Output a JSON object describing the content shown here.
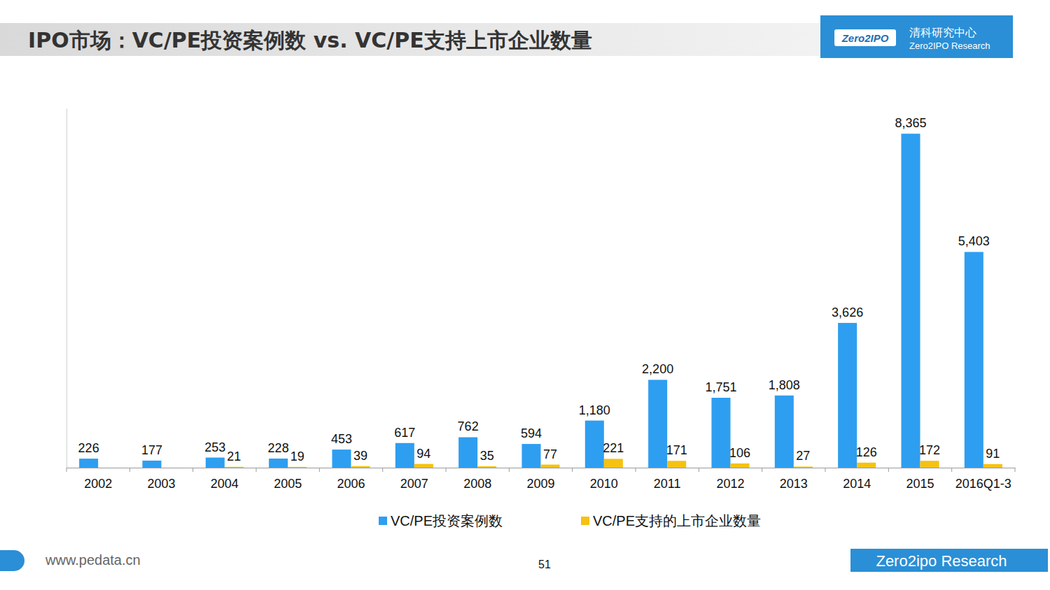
{
  "header": {
    "logo": {
      "mark": "Zero2IPO",
      "name_cn": "清科研究中心",
      "name_en": "Zero2IPO Research"
    }
  },
  "footer": {
    "url": "www.pedata.cn",
    "page": "51",
    "brand": "Zero2ipo Research"
  },
  "chart_data": {
    "type": "bar",
    "title": "IPO市场：VC/PE投资案例数 vs. VC/PE支持上市企业数量",
    "categories": [
      "2002",
      "2003",
      "2004",
      "2005",
      "2006",
      "2007",
      "2008",
      "2009",
      "2010",
      "2011",
      "2012",
      "2013",
      "2014",
      "2015",
      "2016Q1-3"
    ],
    "series": [
      {
        "name": "VC/PE投资案例数",
        "color": "#2e9ef0",
        "values": [
          226,
          177,
          253,
          228,
          453,
          617,
          762,
          594,
          1180,
          2200,
          1751,
          1808,
          3626,
          8365,
          5403
        ],
        "value_labels": [
          "226",
          "177",
          "253",
          "228",
          "453",
          "617",
          "762",
          "594",
          "1,180",
          "2,200",
          "1,751",
          "1,808",
          "3,626",
          "8,365",
          "5,403"
        ]
      },
      {
        "name": "VC/PE支持的上市企业数量",
        "color": "#f5c211",
        "values": [
          null,
          null,
          21,
          19,
          39,
          94,
          35,
          77,
          221,
          171,
          106,
          27,
          126,
          172,
          91
        ]
      }
    ],
    "ylim": [
      0,
      9000
    ],
    "yticks": [],
    "tick_labels": "x",
    "data_labels": true,
    "legend": "bottom",
    "grid": false
  }
}
